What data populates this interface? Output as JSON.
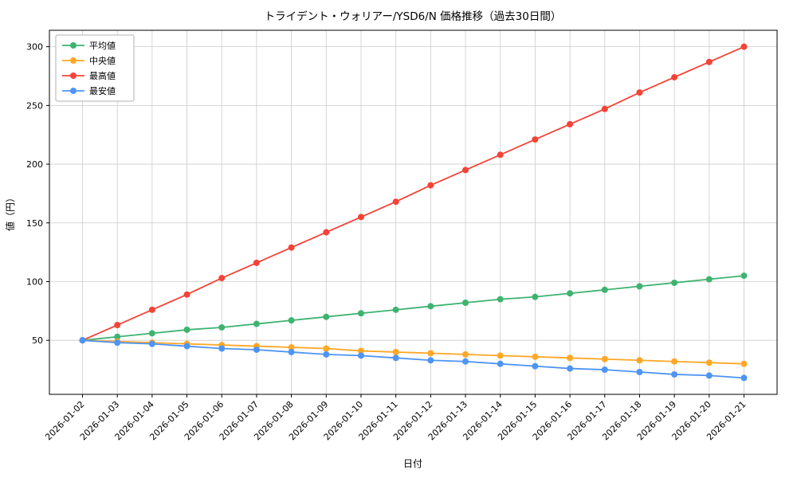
{
  "chart_data": {
    "type": "line",
    "title": "トライデント・ウォリアー/YSD6/N 価格推移（過去30日間）",
    "xlabel": "日付",
    "ylabel": "値（円）",
    "x": [
      "2026-01-02",
      "2026-01-03",
      "2026-01-04",
      "2026-01-05",
      "2026-01-06",
      "2026-01-07",
      "2026-01-08",
      "2026-01-09",
      "2026-01-10",
      "2026-01-11",
      "2026-01-12",
      "2026-01-13",
      "2026-01-14",
      "2026-01-15",
      "2026-01-16",
      "2026-01-17",
      "2026-01-18",
      "2026-01-19",
      "2026-01-20",
      "2026-01-21"
    ],
    "yticks": [
      50,
      100,
      150,
      200,
      250,
      300
    ],
    "ylim": [
      4,
      314
    ],
    "grid": true,
    "legend_position": "upper left",
    "series": [
      {
        "name": "平均値",
        "color": "#3eb370",
        "values": [
          50,
          53,
          56,
          59,
          61,
          64,
          67,
          70,
          73,
          76,
          79,
          82,
          85,
          87,
          90,
          93,
          96,
          99,
          102,
          105
        ]
      },
      {
        "name": "中央値",
        "color": "#ffa726",
        "values": [
          50,
          49,
          48,
          47,
          46,
          45,
          44,
          43,
          41,
          40,
          39,
          38,
          37,
          36,
          35,
          34,
          33,
          32,
          31,
          30
        ]
      },
      {
        "name": "最高値",
        "color": "#f44336",
        "values": [
          50,
          63,
          76,
          89,
          103,
          116,
          129,
          142,
          155,
          168,
          182,
          195,
          208,
          221,
          234,
          247,
          261,
          274,
          287,
          300
        ]
      },
      {
        "name": "最安値",
        "color": "#4d94f5",
        "values": [
          50,
          48,
          47,
          45,
          43,
          42,
          40,
          38,
          37,
          35,
          33,
          32,
          30,
          28,
          26,
          25,
          23,
          21,
          20,
          18
        ]
      }
    ]
  }
}
